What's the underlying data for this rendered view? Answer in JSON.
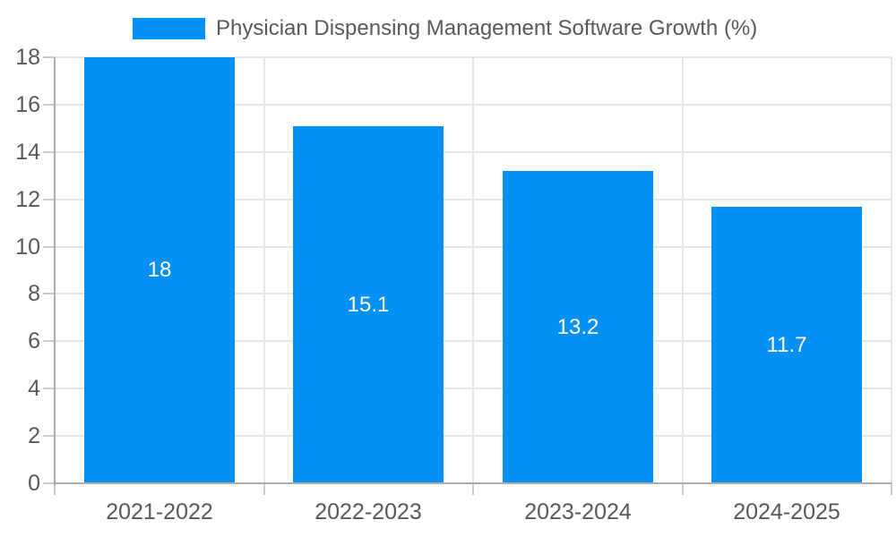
{
  "chart_data": {
    "type": "bar",
    "title": "",
    "legend_position": "top",
    "categories": [
      "2021-2022",
      "2022-2023",
      "2023-2024",
      "2024-2025"
    ],
    "series": [
      {
        "name": "Physician Dispensing Management Software Growth (%)",
        "values": [
          18,
          15.1,
          13.2,
          11.7
        ],
        "value_labels": [
          "18",
          "15.1",
          "13.2",
          "11.7"
        ]
      }
    ],
    "xlabel": "",
    "ylabel": "",
    "ylim": [
      0,
      18
    ],
    "ytick_step": 2,
    "grid": true,
    "colors": {
      "bar": "#0590F6",
      "axis_text": "#595959",
      "value_label": "#FFFFFF",
      "gridline": "#E6E6E6",
      "axis_line": "#ACACAC",
      "tick_line": "#CBCBCB",
      "background": "#FFFFFF"
    }
  }
}
